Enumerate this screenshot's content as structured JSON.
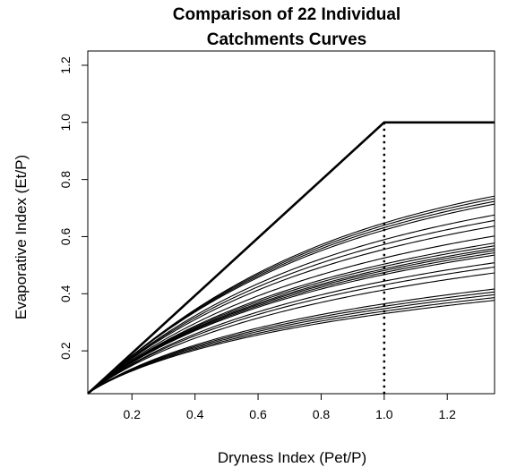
{
  "chart_data": {
    "type": "line",
    "title_lines": [
      "Comparison of 22 Individual",
      "Catchments Curves"
    ],
    "xlabel": "Dryness Index (Pet/P)",
    "ylabel": "Evaporative Index (Et/P)",
    "xlim": [
      0.06,
      1.35
    ],
    "ylim": [
      0.05,
      1.25
    ],
    "xticks": [
      0.2,
      0.4,
      0.6,
      0.8,
      1.0,
      1.2
    ],
    "xtick_labels": [
      "0.2",
      "0.4",
      "0.6",
      "0.8",
      "1.0",
      "1.2"
    ],
    "yticks": [
      0.2,
      0.4,
      0.6,
      0.8,
      1.0,
      1.2
    ],
    "ytick_labels": [
      "0.2",
      "0.4",
      "0.6",
      "0.8",
      "1.0",
      "1.2"
    ],
    "grid": false,
    "legend": "none",
    "limit_line": {
      "x": [
        0.06,
        1.0,
        1.35
      ],
      "y": [
        0.05,
        1.0,
        1.0
      ]
    },
    "reference_line": {
      "x": 1.0,
      "style": "dotted",
      "y_range": [
        0.05,
        1.0
      ]
    },
    "curve_origin": [
      0.06,
      0.05
    ],
    "series": [
      {
        "values": [
          0.745,
          0.645
        ]
      },
      {
        "values": [
          0.735,
          0.638
        ]
      },
      {
        "values": [
          0.725,
          0.63
        ]
      },
      {
        "values": [
          0.715,
          0.622
        ]
      },
      {
        "values": [
          0.675,
          0.59
        ]
      },
      {
        "values": [
          0.655,
          0.574
        ]
      },
      {
        "values": [
          0.635,
          0.557
        ]
      },
      {
        "values": [
          0.6,
          0.527
        ]
      },
      {
        "values": [
          0.575,
          0.506
        ]
      },
      {
        "values": [
          0.565,
          0.498
        ]
      },
      {
        "values": [
          0.555,
          0.49
        ]
      },
      {
        "values": [
          0.548,
          0.484
        ]
      },
      {
        "values": [
          0.54,
          0.477
        ]
      },
      {
        "values": [
          0.532,
          0.47
        ]
      },
      {
        "values": [
          0.505,
          0.447
        ]
      },
      {
        "values": [
          0.49,
          0.434
        ]
      },
      {
        "values": [
          0.47,
          0.416
        ]
      },
      {
        "values": [
          0.415,
          0.366
        ]
      },
      {
        "values": [
          0.405,
          0.357
        ]
      },
      {
        "values": [
          0.395,
          0.349
        ]
      },
      {
        "values": [
          0.385,
          0.34
        ]
      },
      {
        "values": [
          0.375,
          0.332
        ]
      }
    ],
    "series_value_x": [
      1.35,
      1.0
    ]
  }
}
